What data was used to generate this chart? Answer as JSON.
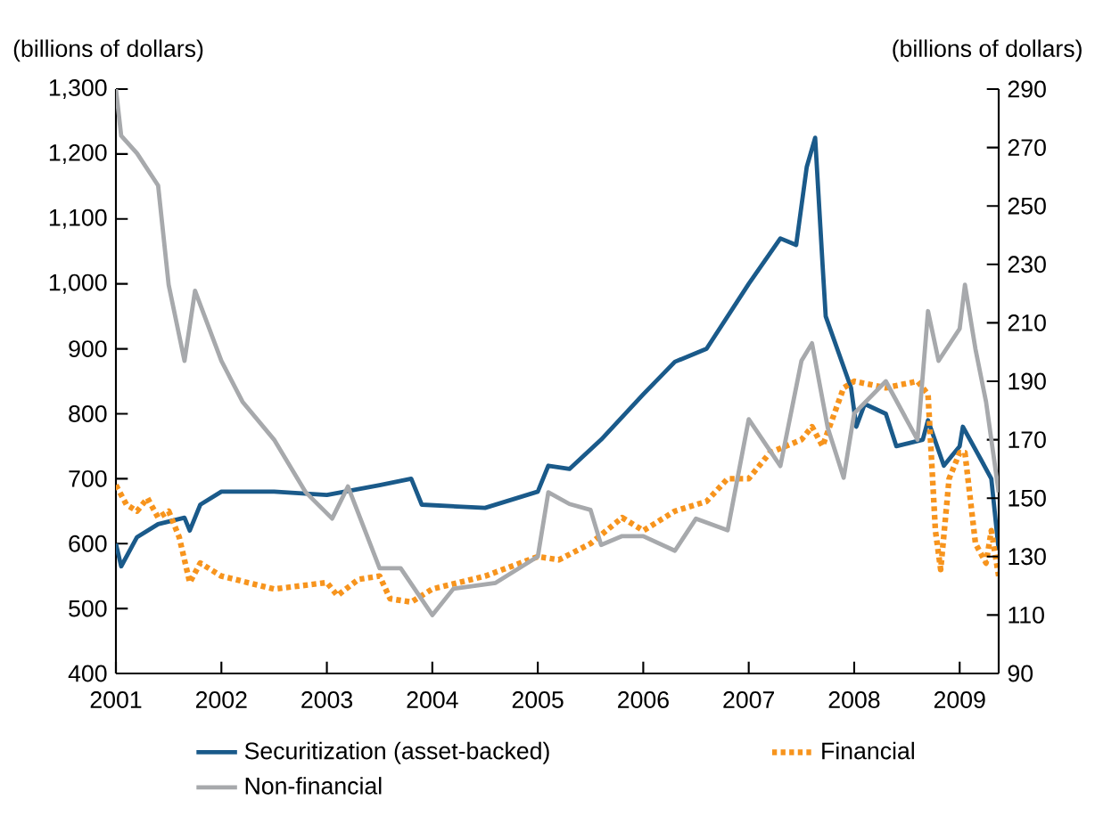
{
  "chart_data": {
    "type": "line",
    "ylabel": "(billions of dollars)",
    "y2label": "(billions of dollars)",
    "xlim": [
      2001,
      2009.37
    ],
    "xticks": [
      2001,
      2002,
      2003,
      2004,
      2005,
      2006,
      2007,
      2008,
      2009
    ],
    "ylim": [
      400,
      1300
    ],
    "yticks": [
      400,
      500,
      600,
      700,
      800,
      900,
      {
        "value": 1000,
        "label": "1,000"
      },
      {
        "value": 1100,
        "label": "1,100"
      },
      {
        "value": 1200,
        "label": "1,200"
      },
      {
        "value": 1300,
        "label": "1,300"
      }
    ],
    "y2lim": [
      90,
      290
    ],
    "y2ticks": [
      90,
      110,
      130,
      150,
      170,
      190,
      210,
      230,
      250,
      270,
      290
    ],
    "legend": "bottom",
    "marker": "none",
    "series": [
      {
        "name": "Securitization (asset-backed)",
        "color": "#1a5a8a",
        "line_style": "solid",
        "axis": "y",
        "x": [
          2001.0,
          2001.05,
          2001.2,
          2001.4,
          2001.65,
          2001.7,
          2001.8,
          2002.0,
          2002.5,
          2003.0,
          2003.5,
          2003.8,
          2003.9,
          2004.5,
          2005.0,
          2005.1,
          2005.3,
          2005.6,
          2006.0,
          2006.3,
          2006.6,
          2007.0,
          2007.3,
          2007.45,
          2007.55,
          2007.63,
          2007.7,
          2007.73,
          2007.97,
          2008.02,
          2008.1,
          2008.3,
          2008.4,
          2008.65,
          2008.7,
          2008.85,
          2009.0,
          2009.03,
          2009.2,
          2009.3,
          2009.37
        ],
        "values": [
          600,
          565,
          610,
          630,
          640,
          620,
          660,
          680,
          680,
          675,
          690,
          700,
          660,
          655,
          680,
          720,
          715,
          760,
          830,
          880,
          900,
          1000,
          1070,
          1060,
          1180,
          1225,
          1030,
          950,
          840,
          780,
          815,
          800,
          750,
          760,
          790,
          720,
          750,
          780,
          730,
          700,
          590
        ]
      },
      {
        "name": "Financial",
        "color": "#f7941d",
        "line_style": "dotted",
        "axis": "y",
        "x": [
          2001.0,
          2001.1,
          2001.2,
          2001.3,
          2001.4,
          2001.5,
          2001.6,
          2001.7,
          2001.8,
          2002.0,
          2002.5,
          2003.0,
          2003.1,
          2003.3,
          2003.5,
          2003.6,
          2003.8,
          2004.0,
          2004.5,
          2005.0,
          2005.2,
          2005.5,
          2005.8,
          2006.0,
          2006.3,
          2006.6,
          2006.8,
          2007.0,
          2007.2,
          2007.5,
          2007.6,
          2007.7,
          2007.9,
          2008.0,
          2008.3,
          2008.6,
          2008.7,
          2008.77,
          2008.82,
          2008.9,
          2009.0,
          2009.05,
          2009.15,
          2009.25,
          2009.3,
          2009.37
        ],
        "values": [
          690,
          660,
          650,
          670,
          640,
          650,
          610,
          540,
          570,
          550,
          530,
          540,
          520,
          545,
          550,
          515,
          510,
          530,
          550,
          580,
          575,
          600,
          640,
          620,
          650,
          665,
          700,
          700,
          740,
          760,
          780,
          750,
          840,
          850,
          840,
          850,
          830,
          620,
          560,
          700,
          740,
          740,
          600,
          570,
          620,
          550
        ]
      },
      {
        "name": "Non-financial",
        "color": "#a7a9ac",
        "line_style": "solid",
        "axis": "y2",
        "x": [
          2001.0,
          2001.05,
          2001.2,
          2001.4,
          2001.5,
          2001.65,
          2001.75,
          2002.0,
          2002.2,
          2002.5,
          2002.8,
          2003.05,
          2003.2,
          2003.5,
          2003.7,
          2004.0,
          2004.2,
          2004.6,
          2005.0,
          2005.1,
          2005.3,
          2005.5,
          2005.6,
          2005.8,
          2006.0,
          2006.3,
          2006.5,
          2006.8,
          2007.0,
          2007.3,
          2007.5,
          2007.6,
          2007.75,
          2007.9,
          2008.0,
          2008.3,
          2008.6,
          2008.7,
          2008.8,
          2009.0,
          2009.05,
          2009.15,
          2009.25,
          2009.37
        ],
        "values": [
          290,
          274,
          268,
          257,
          223,
          197,
          221,
          197,
          183,
          170,
          152,
          143,
          154,
          126,
          126,
          110,
          119,
          121,
          130,
          152,
          148,
          146,
          134,
          137,
          137,
          132,
          143,
          139,
          177,
          161,
          197,
          203,
          174,
          157,
          179,
          190,
          170,
          214,
          197,
          208,
          223,
          201,
          183,
          152
        ]
      }
    ]
  }
}
